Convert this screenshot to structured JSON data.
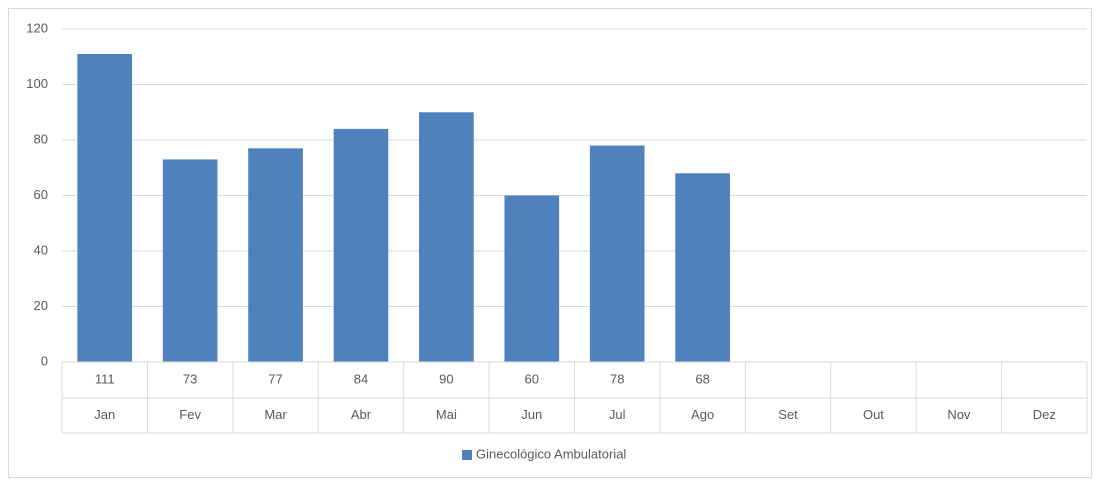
{
  "chart_data": {
    "type": "bar",
    "categories": [
      "Jan",
      "Fev",
      "Mar",
      "Abr",
      "Mai",
      "Jun",
      "Jul",
      "Ago",
      "Set",
      "Out",
      "Nov",
      "Dez"
    ],
    "series": [
      {
        "name": "Ginecológico Ambulatorial",
        "color": "#4f81bd",
        "values": [
          111,
          73,
          77,
          84,
          90,
          60,
          78,
          68,
          null,
          null,
          null,
          null
        ]
      }
    ],
    "ylim": [
      0,
      120
    ],
    "yticks": [
      0,
      20,
      40,
      60,
      80,
      100,
      120
    ],
    "grid": true,
    "legend": "bottom",
    "data_table": true
  }
}
